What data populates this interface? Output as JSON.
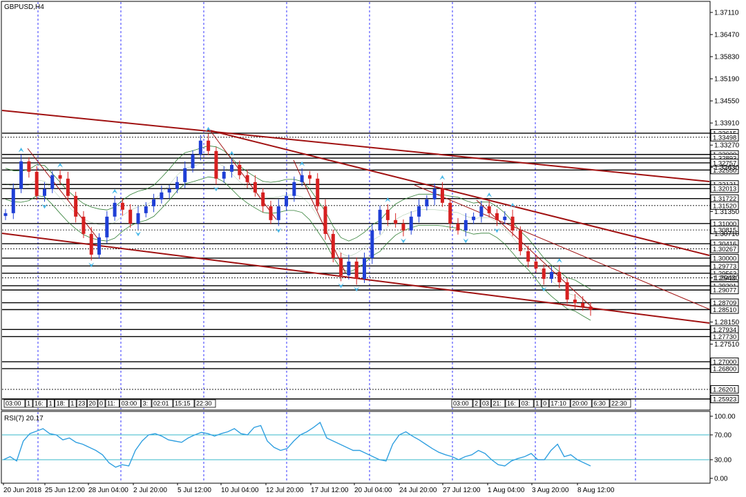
{
  "title": "GBPUSD,H4",
  "colors": {
    "up_candle": "#1f3fd6",
    "down_candle": "#d62020",
    "trend_line": "#a01010",
    "bands": "#2e7d32",
    "fractal": "#48b8e8",
    "rsi_line": "#2f9fe0",
    "rsi_levels": "#35b7c9",
    "grid": "#0000ff"
  },
  "chart_data": [
    {
      "type": "candlestick",
      "symbol": "GBPUSD",
      "timeframe": "H4",
      "ylim": [
        1.256,
        1.374
      ],
      "price_ticks": [
        "1.37110",
        "1.36470",
        "1.35830",
        "1.35190",
        "1.34550",
        "1.33910",
        "1.33270",
        "1.32630",
        "1.31350",
        "1.30710",
        "1.29430",
        "1.28150",
        "1.27510"
      ],
      "x_ticks": [
        "20 Jun 2018",
        "25 Jun 12:00",
        "28 Jun 04:00",
        "2 Jul 20:00",
        "5 Jul 12:00",
        "10 Jul 04:00",
        "12 Jul 20:00",
        "17 Jul 12:00",
        "20 Jul 04:00",
        "24 Jul 20:00",
        "27 Jul 12:00",
        "1 Aug 04:00",
        "3 Aug 20:00",
        "8 Aug 12:00"
      ],
      "close_path": [
        1.313,
        1.32,
        1.328,
        1.325,
        1.318,
        1.32,
        1.324,
        1.323,
        1.318,
        1.312,
        1.307,
        1.301,
        1.306,
        1.312,
        1.316,
        1.314,
        1.31,
        1.313,
        1.315,
        1.317,
        1.319,
        1.32,
        1.322,
        1.326,
        1.33,
        1.334,
        1.331,
        1.323,
        1.325,
        1.327,
        1.324,
        1.322,
        1.319,
        1.315,
        1.311,
        1.315,
        1.318,
        1.322,
        1.324,
        1.323,
        1.315,
        1.307,
        1.3,
        1.295,
        1.299,
        1.294,
        1.3,
        1.308,
        1.314,
        1.311,
        1.31,
        1.308,
        1.312,
        1.315,
        1.317,
        1.32,
        1.316,
        1.31,
        1.308,
        1.311,
        1.312,
        1.315,
        1.313,
        1.311,
        1.312,
        1.308,
        1.302,
        1.299,
        1.297,
        1.294,
        1.296,
        1.293,
        1.288,
        1.287,
        1.286,
        1.285
      ],
      "horizontal_levels": [
        {
          "price": "1.33615",
          "style": "solid"
        },
        {
          "price": "1.33498",
          "style": "dotted"
        },
        {
          "price": "1.33000",
          "style": "solid"
        },
        {
          "price": "1.32893",
          "style": "solid"
        },
        {
          "price": "1.32757",
          "style": "solid"
        },
        {
          "price": "1.32550",
          "style": "solid"
        },
        {
          "price": "1.32131",
          "style": "solid"
        },
        {
          "price": "1.32013",
          "style": "solid"
        },
        {
          "price": "1.31722",
          "style": "solid"
        },
        {
          "price": "1.31520",
          "style": "dotted"
        },
        {
          "price": "1.31000",
          "style": "solid"
        },
        {
          "price": "1.30815",
          "style": "dotted"
        },
        {
          "price": "1.30416",
          "style": "solid"
        },
        {
          "price": "1.30267",
          "style": "dotted"
        },
        {
          "price": "1.30000",
          "style": "solid"
        },
        {
          "price": "1.29773",
          "style": "solid"
        },
        {
          "price": "1.29563",
          "style": "solid"
        },
        {
          "price": "1.29430",
          "style": "dotted"
        },
        {
          "price": "1.29201",
          "style": "solid"
        },
        {
          "price": "1.29077",
          "style": "solid"
        },
        {
          "price": "1.28709",
          "style": "solid"
        },
        {
          "price": "1.28510",
          "style": "solid"
        },
        {
          "price": "1.27934",
          "style": "solid"
        },
        {
          "price": "1.27730",
          "style": "solid"
        },
        {
          "price": "1.27000",
          "style": "solid"
        },
        {
          "price": "1.26800",
          "style": "solid"
        },
        {
          "price": "1.26201",
          "style": "dotted"
        },
        {
          "price": "1.25923",
          "style": "solid"
        }
      ],
      "current_price": "1.28510",
      "time_markers_left": [
        "03:00",
        "1",
        "16:",
        "1",
        "18:",
        "1",
        "23",
        "20",
        "0",
        "11:",
        "03:00",
        "3:",
        "02:01",
        "15:15",
        "22:30"
      ],
      "time_markers_right": [
        "03:00",
        "2",
        "03",
        "21:",
        "16:",
        "03:",
        "1",
        "0",
        "17:10",
        "20:00",
        "6:30",
        "22:30"
      ]
    },
    {
      "type": "line",
      "indicator": "RSI(7)",
      "label": "RSI(7) 20.17",
      "ylim": [
        0,
        100
      ],
      "levels": [
        70,
        30
      ],
      "y_ticks": [
        "100.00",
        "70.00",
        "30.00",
        "0.00"
      ],
      "values": [
        30,
        35,
        28,
        60,
        72,
        76,
        80,
        72,
        70,
        62,
        65,
        58,
        55,
        50,
        45,
        38,
        25,
        18,
        22,
        20,
        45,
        60,
        70,
        72,
        68,
        62,
        60,
        58,
        65,
        70,
        74,
        72,
        68,
        72,
        75,
        80,
        72,
        70,
        82,
        85,
        60,
        50,
        45,
        48,
        60,
        70,
        75,
        82,
        90,
        65,
        60,
        55,
        50,
        45,
        45,
        40,
        35,
        30,
        28,
        55,
        70,
        75,
        68,
        62,
        55,
        48,
        42,
        38,
        35,
        30,
        35,
        38,
        45,
        40,
        30,
        22,
        20,
        28,
        32,
        35,
        40,
        30,
        30,
        45,
        55,
        35,
        38,
        30,
        25,
        20
      ]
    }
  ]
}
